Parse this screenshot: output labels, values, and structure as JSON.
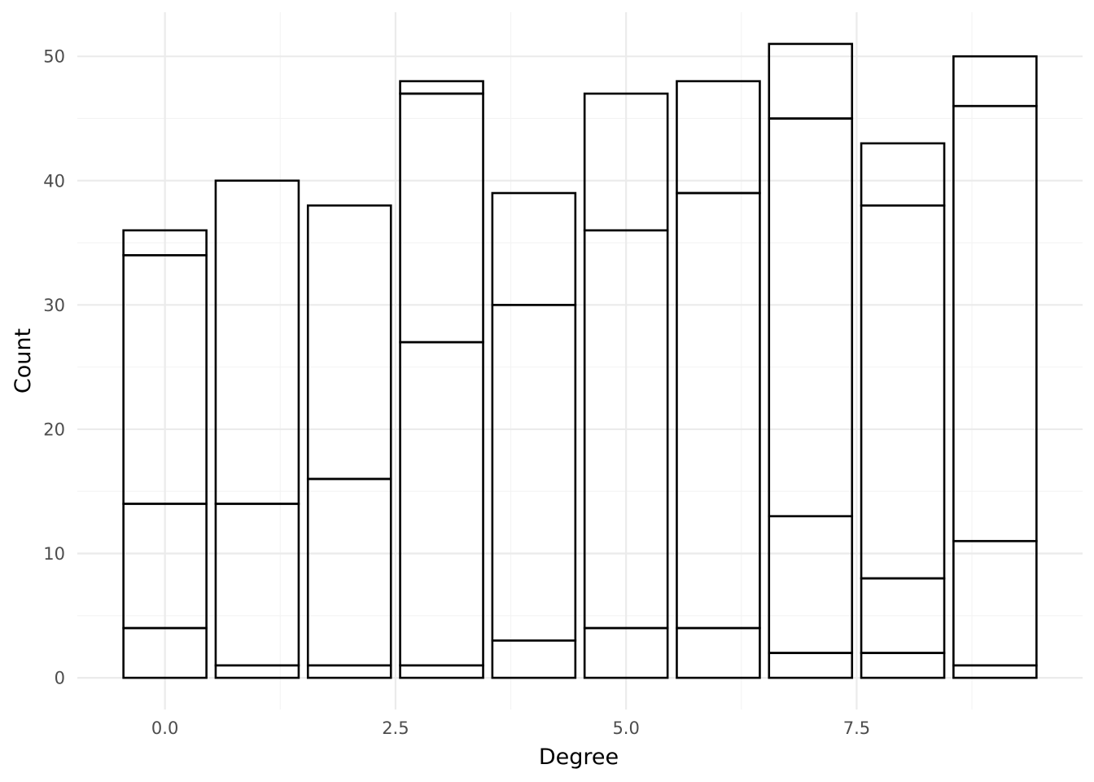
{
  "chart_data": {
    "type": "bar",
    "stacked": true,
    "x": [
      0,
      1,
      2,
      3,
      4,
      5,
      6,
      7,
      8,
      9
    ],
    "stack_boundaries": [
      [
        0,
        4,
        14,
        34,
        36
      ],
      [
        0,
        1,
        14,
        40
      ],
      [
        0,
        1,
        16,
        38
      ],
      [
        0,
        1,
        27,
        47,
        48
      ],
      [
        0,
        3,
        30,
        39
      ],
      [
        0,
        4,
        36,
        47
      ],
      [
        0,
        4,
        39,
        48
      ],
      [
        0,
        2,
        13,
        45,
        51
      ],
      [
        0,
        2,
        8,
        38,
        43
      ],
      [
        0,
        1,
        11,
        46,
        50
      ]
    ],
    "totals": [
      36,
      40,
      38,
      48,
      39,
      47,
      48,
      51,
      43,
      50
    ],
    "bar_width": 0.9,
    "fill": "#ffffff",
    "stroke": "#000000",
    "xlabel": "Degree",
    "ylabel": "Count",
    "xlim": [
      -0.95,
      9.95
    ],
    "ylim": [
      -2.55,
      53.55
    ],
    "x_ticks": [
      0,
      2.5,
      5,
      7.5
    ],
    "x_tick_labels": [
      "0.0",
      "2.5",
      "5.0",
      "7.5"
    ],
    "y_ticks": [
      0,
      10,
      20,
      30,
      40,
      50
    ],
    "y_tick_labels": [
      "0",
      "10",
      "20",
      "30",
      "40",
      "50"
    ],
    "grid": true,
    "legend": false
  }
}
